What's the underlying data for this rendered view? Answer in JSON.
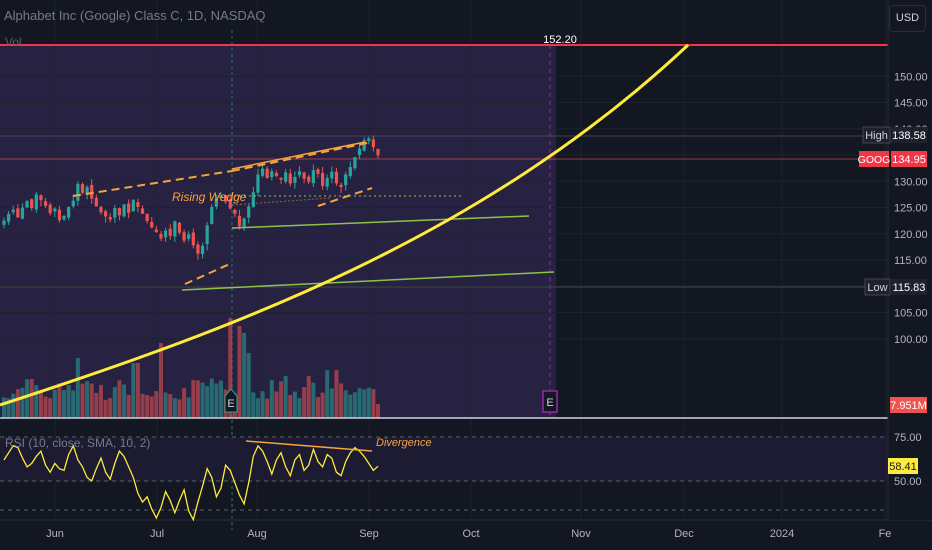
{
  "header": {
    "title": "Alphabet Inc (Google) Class C, 1D, NASDAQ",
    "volume_label": "Vol",
    "currency": "USD"
  },
  "chart_data": [
    {
      "type": "candlestick",
      "title": "Alphabet Inc (Google) Class C, 1D, NASDAQ",
      "ylim": [
        97,
        157
      ],
      "y_ticks": [
        100,
        105,
        110,
        115,
        120,
        125,
        130,
        135,
        140,
        145,
        150
      ],
      "x_ticks": [
        "Jun",
        "Jul",
        "Aug",
        "Sep",
        "Oct",
        "Nov",
        "Dec",
        "2024",
        "Fe"
      ],
      "closes": [
        122.5,
        123.8,
        124.6,
        123.1,
        125.0,
        126.2,
        124.9,
        127.5,
        126.4,
        125.3,
        123.9,
        124.8,
        122.6,
        123.4,
        125.1,
        126.3,
        129.5,
        127.8,
        128.9,
        126.7,
        125.2,
        124.1,
        123.3,
        122.7,
        124.9,
        123.5,
        125.6,
        124.0,
        126.4,
        125.1,
        123.8,
        122.4,
        121.2,
        120.3,
        119.1,
        120.6,
        119.6,
        122.4,
        120.2,
        118.7,
        119.9,
        117.8,
        116.2,
        117.7,
        121.6,
        125.1,
        126.6,
        127.2,
        126.1,
        124.8,
        123.8,
        121.4,
        122.9,
        125.2,
        127.9,
        131.3,
        132.4,
        130.6,
        131.9,
        131.0,
        130.3,
        131.7,
        129.6,
        130.8,
        131.9,
        130.5,
        129.9,
        132.1,
        131.4,
        129.1,
        130.6,
        131.8,
        129.6,
        128.9,
        131.3,
        132.7,
        134.6,
        136.2,
        137.8,
        138.2,
        136.5,
        134.95
      ],
      "price_line": 152.2,
      "labels": {
        "high": "High",
        "high_value": "138.58",
        "symbol": "GOOG",
        "last_value": "134.95",
        "low": "Low",
        "low_value": "115.83",
        "target_value": "152.20",
        "volume_value": "7.951M",
        "pattern": "Rising Wedge",
        "earnings_marker": "E"
      },
      "colors": {
        "up": "#26a69a",
        "down": "#ef5350",
        "curve": "#ffeb3b",
        "wedge": "#f7a53b",
        "trend": "#8bc34a",
        "level": "#f23645",
        "earnings": "#9c27b0",
        "accent_bg": "#2b2346"
      }
    },
    {
      "type": "line",
      "title": "RSI (10, close, SMA, 10, 2)",
      "ylim": [
        14,
        82
      ],
      "y_ticks": [
        75,
        50
      ],
      "values": [
        62,
        66,
        70,
        69,
        63,
        58,
        60,
        64,
        67,
        59,
        55,
        60,
        57,
        56,
        65,
        70,
        62,
        58,
        52,
        50,
        57,
        63,
        55,
        51,
        60,
        67,
        64,
        58,
        52,
        43,
        38,
        41,
        34,
        29,
        35,
        44,
        39,
        32,
        39,
        45,
        33,
        28,
        38,
        47,
        57,
        52,
        41,
        46,
        59,
        56,
        49,
        42,
        37,
        49,
        64,
        70,
        67,
        61,
        54,
        62,
        66,
        58,
        53,
        62,
        65,
        56,
        59,
        68,
        61,
        58,
        65,
        63,
        55,
        53,
        61,
        66,
        69,
        67,
        64,
        60,
        56,
        58.41
      ],
      "latest": "58.41",
      "annotation": "Divergence"
    }
  ]
}
